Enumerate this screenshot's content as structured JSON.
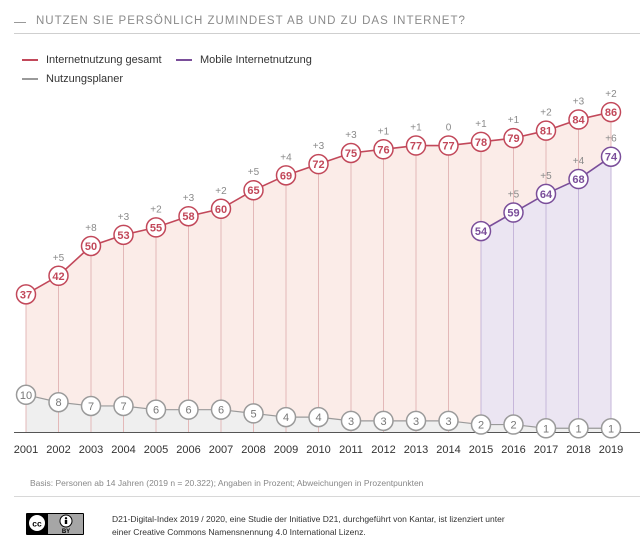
{
  "title": "NUTZEN SIE PERSÖNLICH ZUMINDEST AB UND ZU DAS INTERNET?",
  "basis": "Basis: Personen ab 14 Jahren (2019 n = 20.322); Angaben in Prozent; Abweichungen in Prozentpunkten",
  "license": {
    "line1": "D21-Digital-Index 2019 / 2020, eine Studie der Initiative D21, durchgeführt von Kantar, ist lizenziert unter",
    "line2": "einer Creative Commons Namensnennung 4.0 International Lizenz.",
    "badge_text": "BY"
  },
  "colors": {
    "red": "#c2485a",
    "purple": "#7a4e9a",
    "gray": "#9a9a9a",
    "red_fill": "#fbece8",
    "purple_fill": "#ebe5f2",
    "gray_fill": "#efefef"
  },
  "chart_data": {
    "type": "line",
    "title": "NUTZEN SIE PERSÖNLICH ZUMINDEST AB UND ZU DAS INTERNET?",
    "xlabel": "",
    "ylabel": "",
    "ylim": [
      0,
      100
    ],
    "legend_position": "top-left",
    "x": [
      "2001",
      "2002",
      "2003",
      "2004",
      "2005",
      "2006",
      "2007",
      "2008",
      "2009",
      "2010",
      "2011",
      "2012",
      "2013",
      "2014",
      "2015",
      "2016",
      "2017",
      "2018",
      "2019"
    ],
    "series": [
      {
        "name": "Internetnutzung gesamt",
        "color": "#c2485a",
        "values": [
          37,
          42,
          50,
          53,
          55,
          58,
          60,
          65,
          69,
          72,
          75,
          76,
          77,
          77,
          78,
          79,
          81,
          84,
          86
        ],
        "changes": [
          "",
          "+5",
          "+8",
          "+3",
          "+2",
          "+3",
          "+2",
          "+5",
          "+4",
          "+3",
          "+3",
          "+1",
          "+1",
          "0",
          "+1",
          "+1",
          "+2",
          "+3",
          "+2"
        ]
      },
      {
        "name": "Mobile Internetnutzung",
        "color": "#7a4e9a",
        "values": [
          null,
          null,
          null,
          null,
          null,
          null,
          null,
          null,
          null,
          null,
          null,
          null,
          null,
          null,
          54,
          59,
          64,
          68,
          74
        ],
        "changes": [
          "",
          "",
          "",
          "",
          "",
          "",
          "",
          "",
          "",
          "",
          "",
          "",
          "",
          "",
          "",
          "+5",
          "+5",
          "+4",
          "+6"
        ]
      },
      {
        "name": "Nutzungsplaner",
        "color": "#9a9a9a",
        "values": [
          10,
          8,
          7,
          7,
          6,
          6,
          6,
          5,
          4,
          4,
          3,
          3,
          3,
          3,
          2,
          2,
          1,
          1,
          1
        ],
        "changes": []
      }
    ]
  }
}
